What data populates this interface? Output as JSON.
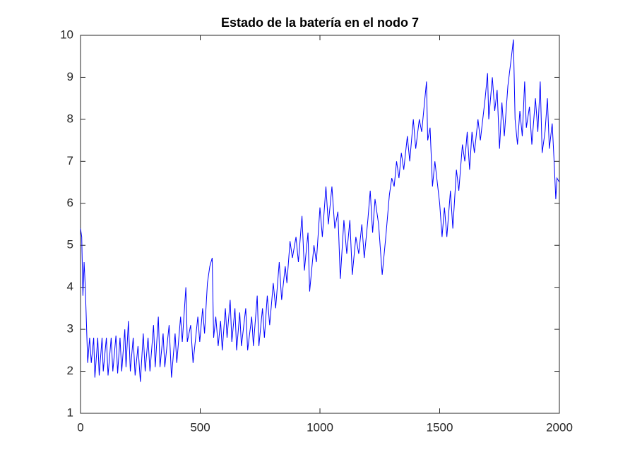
{
  "chart_data": {
    "type": "line",
    "title": "Estado de la batería en el nodo 7",
    "x": [
      0,
      5,
      10,
      15,
      20,
      25,
      30,
      38,
      45,
      55,
      60,
      72,
      78,
      90,
      95,
      108,
      115,
      128,
      135,
      148,
      155,
      165,
      172,
      185,
      190,
      200,
      208,
      220,
      228,
      240,
      250,
      262,
      270,
      282,
      290,
      305,
      312,
      325,
      332,
      345,
      352,
      370,
      380,
      395,
      402,
      418,
      425,
      440,
      446,
      460,
      470,
      490,
      498,
      510,
      518,
      530,
      540,
      550,
      556,
      565,
      575,
      585,
      592,
      605,
      612,
      625,
      632,
      645,
      652,
      665,
      672,
      690,
      698,
      715,
      722,
      738,
      745,
      760,
      768,
      780,
      790,
      805,
      815,
      830,
      840,
      855,
      862,
      875,
      885,
      900,
      910,
      925,
      935,
      950,
      957,
      975,
      985,
      1000,
      1010,
      1025,
      1035,
      1050,
      1062,
      1075,
      1085,
      1100,
      1112,
      1125,
      1135,
      1150,
      1162,
      1175,
      1185,
      1200,
      1210,
      1220,
      1230,
      1245,
      1260,
      1275,
      1290,
      1300,
      1310,
      1320,
      1330,
      1340,
      1350,
      1365,
      1375,
      1390,
      1400,
      1415,
      1425,
      1445,
      1450,
      1460,
      1470,
      1480,
      1490,
      1500,
      1510,
      1520,
      1530,
      1545,
      1555,
      1570,
      1580,
      1595,
      1605,
      1615,
      1625,
      1635,
      1645,
      1660,
      1670,
      1690,
      1700,
      1705,
      1720,
      1730,
      1740,
      1750,
      1760,
      1770,
      1785,
      1800,
      1808,
      1815,
      1825,
      1835,
      1845,
      1855,
      1862,
      1875,
      1885,
      1900,
      1910,
      1920,
      1928,
      1940,
      1950,
      1958,
      1970,
      1978,
      1985,
      1990,
      2000
    ],
    "series": [
      {
        "name": "nodo 7",
        "color": "#0000ff",
        "values": [
          5.4,
          5.2,
          3.8,
          4.6,
          4.0,
          3.1,
          2.2,
          2.8,
          2.2,
          2.8,
          1.85,
          2.8,
          1.9,
          2.8,
          2.0,
          2.8,
          1.9,
          2.8,
          2.0,
          2.85,
          1.95,
          2.8,
          2.0,
          3.0,
          2.1,
          3.2,
          2.0,
          2.8,
          1.9,
          2.6,
          1.75,
          2.9,
          2.0,
          2.8,
          2.0,
          3.1,
          2.1,
          3.3,
          2.1,
          2.9,
          2.1,
          3.1,
          1.85,
          2.9,
          2.2,
          3.3,
          2.7,
          4.0,
          2.7,
          3.1,
          2.2,
          3.3,
          2.7,
          3.5,
          2.9,
          4.1,
          4.5,
          4.7,
          2.8,
          3.3,
          2.6,
          3.2,
          2.5,
          3.5,
          2.8,
          3.7,
          2.7,
          3.5,
          2.5,
          3.4,
          2.6,
          3.5,
          2.5,
          3.3,
          2.6,
          3.8,
          2.6,
          3.5,
          2.8,
          3.8,
          3.1,
          4.1,
          3.5,
          4.6,
          3.7,
          4.5,
          4.1,
          5.1,
          4.7,
          5.2,
          4.6,
          5.7,
          4.4,
          5.3,
          3.9,
          5.0,
          4.6,
          5.9,
          5.2,
          6.4,
          5.5,
          6.4,
          5.4,
          5.8,
          4.2,
          5.6,
          4.8,
          5.6,
          4.3,
          5.2,
          4.8,
          5.5,
          4.7,
          5.6,
          6.3,
          5.3,
          6.1,
          5.5,
          4.3,
          5.2,
          6.2,
          6.6,
          6.4,
          7.0,
          6.6,
          7.2,
          6.8,
          7.6,
          7.0,
          8.0,
          7.3,
          8.0,
          7.7,
          8.9,
          7.5,
          7.8,
          6.4,
          7.0,
          6.5,
          6.0,
          5.2,
          5.9,
          5.2,
          6.3,
          5.4,
          6.8,
          6.3,
          7.4,
          7.0,
          7.7,
          6.8,
          7.7,
          7.2,
          8.0,
          7.5,
          8.5,
          9.1,
          8.0,
          9.0,
          8.2,
          8.7,
          7.3,
          8.4,
          7.6,
          8.8,
          9.5,
          9.9,
          8.0,
          7.4,
          8.2,
          7.6,
          8.9,
          7.8,
          8.3,
          7.4,
          8.5,
          7.7,
          8.9,
          7.2,
          7.7,
          8.5,
          7.3,
          7.9,
          7.0,
          6.1,
          6.6,
          6.5
        ]
      }
    ],
    "xlim": [
      0,
      2000
    ],
    "xticks": [
      0,
      500,
      1000,
      1500,
      2000
    ],
    "ylim": [
      1,
      10
    ],
    "yticks": [
      1,
      2,
      3,
      4,
      5,
      6,
      7,
      8,
      9,
      10
    ],
    "grid": false
  }
}
